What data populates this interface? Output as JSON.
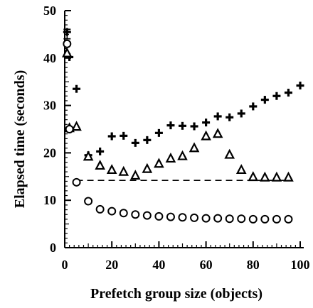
{
  "chart_data": {
    "type": "scatter",
    "title": "",
    "xlabel": "Prefetch group size (objects)",
    "ylabel": "Elapsed time (seconds)",
    "xlim": [
      0,
      100
    ],
    "ylim": [
      0,
      50
    ],
    "xticks": [
      0,
      20,
      40,
      60,
      80,
      100
    ],
    "yticks": [
      0,
      10,
      20,
      30,
      40,
      50
    ],
    "xtick_labels": [
      "0",
      "20",
      "40",
      "60",
      "80",
      "100"
    ],
    "ytick_labels": [
      "0",
      "10",
      "20",
      "30",
      "40",
      "50"
    ],
    "grid": false,
    "legend": "none",
    "reference_line": {
      "style": "dashed",
      "y": 14.2,
      "x_range": [
        5,
        95
      ]
    },
    "series": [
      {
        "marker": "cross",
        "points": [
          {
            "x": 1,
            "y": 45.5,
            "err": 1.0
          },
          {
            "x": 2,
            "y": 40.2,
            "err": 0.7
          },
          {
            "x": 5,
            "y": 33.5,
            "err": 0.6
          },
          {
            "x": 10,
            "y": 19.5
          },
          {
            "x": 15,
            "y": 20.3
          },
          {
            "x": 20,
            "y": 23.5
          },
          {
            "x": 25,
            "y": 23.6
          },
          {
            "x": 30,
            "y": 22.1
          },
          {
            "x": 35,
            "y": 22.7
          },
          {
            "x": 40,
            "y": 24.2
          },
          {
            "x": 45,
            "y": 25.8
          },
          {
            "x": 50,
            "y": 25.7
          },
          {
            "x": 55,
            "y": 25.6
          },
          {
            "x": 60,
            "y": 26.4
          },
          {
            "x": 65,
            "y": 27.7
          },
          {
            "x": 70,
            "y": 27.5
          },
          {
            "x": 75,
            "y": 28.3
          },
          {
            "x": 80,
            "y": 29.8
          },
          {
            "x": 85,
            "y": 31.2
          },
          {
            "x": 90,
            "y": 32.0
          },
          {
            "x": 95,
            "y": 32.7
          },
          {
            "x": 100,
            "y": 34.2
          }
        ]
      },
      {
        "marker": "triangle",
        "points": [
          {
            "x": 1,
            "y": 41.0
          },
          {
            "x": 2,
            "y": 25.2,
            "err": 1.3
          },
          {
            "x": 5,
            "y": 25.5
          },
          {
            "x": 10,
            "y": 19.2,
            "err": 1.6
          },
          {
            "x": 15,
            "y": 17.3
          },
          {
            "x": 20,
            "y": 16.4
          },
          {
            "x": 25,
            "y": 16.0
          },
          {
            "x": 30,
            "y": 15.2
          },
          {
            "x": 35,
            "y": 16.6
          },
          {
            "x": 40,
            "y": 17.7
          },
          {
            "x": 45,
            "y": 18.8
          },
          {
            "x": 50,
            "y": 19.3
          },
          {
            "x": 55,
            "y": 21.0
          },
          {
            "x": 60,
            "y": 23.5
          },
          {
            "x": 65,
            "y": 24.0
          },
          {
            "x": 70,
            "y": 19.6
          },
          {
            "x": 75,
            "y": 16.4
          },
          {
            "x": 80,
            "y": 14.9
          },
          {
            "x": 85,
            "y": 14.8
          },
          {
            "x": 90,
            "y": 14.8
          },
          {
            "x": 95,
            "y": 14.8
          }
        ]
      },
      {
        "marker": "circle",
        "points": [
          {
            "x": 1,
            "y": 43.0
          },
          {
            "x": 2,
            "y": 25.0
          },
          {
            "x": 5,
            "y": 13.8
          },
          {
            "x": 10,
            "y": 9.8
          },
          {
            "x": 15,
            "y": 8.1
          },
          {
            "x": 20,
            "y": 7.7
          },
          {
            "x": 25,
            "y": 7.3
          },
          {
            "x": 30,
            "y": 7.0
          },
          {
            "x": 35,
            "y": 6.8
          },
          {
            "x": 40,
            "y": 6.6
          },
          {
            "x": 45,
            "y": 6.5
          },
          {
            "x": 50,
            "y": 6.4
          },
          {
            "x": 55,
            "y": 6.3
          },
          {
            "x": 60,
            "y": 6.2
          },
          {
            "x": 65,
            "y": 6.2
          },
          {
            "x": 70,
            "y": 6.1
          },
          {
            "x": 75,
            "y": 6.1
          },
          {
            "x": 80,
            "y": 6.0
          },
          {
            "x": 85,
            "y": 6.0
          },
          {
            "x": 90,
            "y": 6.0
          },
          {
            "x": 95,
            "y": 6.0
          }
        ]
      }
    ]
  }
}
